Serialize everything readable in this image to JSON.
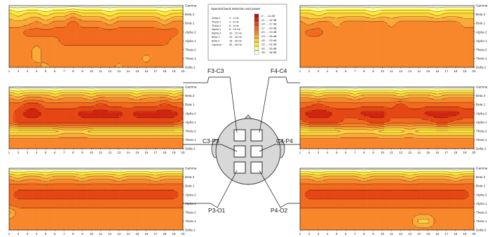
{
  "colors": {
    "scale": [
      "#b31212",
      "#cf2410",
      "#e64614",
      "#f26a1e",
      "#f7872a",
      "#fbaa3a",
      "#fdd03e",
      "#ffed38",
      "#ffff9a",
      "#ffffe8"
    ],
    "contour": "#3a1f10",
    "frame": "#000000"
  },
  "chart_data": {
    "type": "heatmap",
    "x": [
      1,
      2,
      3,
      4,
      5,
      6,
      7,
      8,
      9,
      10,
      11,
      12,
      13,
      14,
      15,
      16,
      17,
      18,
      19,
      20
    ],
    "bands": [
      "Gamma",
      "Beta 2",
      "Beta 1",
      "Alpha 2",
      "Alpha 1",
      "Theta 2",
      "Theta 1",
      "Delta 2"
    ],
    "legend": {
      "title": "Spectral band selection and power",
      "bands": [
        {
          "name": "Delta 2",
          "range": "2 - 4 Hz"
        },
        {
          "name": "Theta 1",
          "range": "4 - 6 Hz"
        },
        {
          "name": "Theta 2",
          "range": "6 - 8 Hz"
        },
        {
          "name": "Alpha 1",
          "range": "8 - 10 Hz"
        },
        {
          "name": "Alpha 2",
          "range": "10 - 12 Hz"
        },
        {
          "name": "Beta 1",
          "range": "12 - 16 Hz"
        },
        {
          "name": "Beta 2",
          "range": "16 - 20 Hz"
        },
        {
          "name": "Gamma",
          "range": "30 - 40 Hz"
        }
      ],
      "scale_labels": [
        "-9 ... -11 dB",
        "-11 ... -14 dB",
        "-14 ... -17 dB",
        "-17 ... -20 dB",
        "-20 ... -23 dB",
        "-23 ... -26 dB",
        "-26 ... -29 dB",
        "-29 ... -32 dB",
        "-32 ... -35 dB",
        "-35 ... -38 dB"
      ]
    },
    "panels": [
      {
        "name": "F3-C3",
        "levels": [
          [
            9,
            9,
            9,
            9,
            9,
            9,
            9,
            9,
            9,
            9,
            9,
            9,
            9,
            9,
            9,
            9,
            9,
            9,
            9,
            9
          ],
          [
            6,
            7,
            6,
            6,
            7,
            6,
            6,
            5,
            6,
            6,
            6,
            7,
            6,
            6,
            6,
            6,
            6,
            7,
            6,
            6
          ],
          [
            5,
            5,
            5,
            4,
            5,
            4,
            4,
            3,
            4,
            4,
            4,
            5,
            4,
            4,
            4,
            4,
            4,
            5,
            4,
            4
          ],
          [
            4,
            4,
            3,
            3,
            3,
            3,
            3,
            3,
            3,
            3,
            3,
            3,
            3,
            3,
            3,
            3,
            3,
            3,
            3,
            4
          ],
          [
            4,
            4,
            4,
            4,
            4,
            4,
            3,
            3,
            3,
            3,
            3,
            3,
            3,
            3,
            3,
            3,
            3,
            3,
            4,
            4
          ],
          [
            4,
            4,
            4,
            5,
            4,
            4,
            4,
            4,
            4,
            4,
            4,
            4,
            4,
            4,
            4,
            4,
            4,
            4,
            4,
            4
          ],
          [
            4,
            4,
            4,
            5,
            4,
            4,
            4,
            4,
            4,
            4,
            4,
            4,
            4,
            4,
            4,
            5,
            4,
            4,
            4,
            4
          ],
          [
            4,
            4,
            4,
            4,
            5,
            4,
            4,
            4,
            4,
            4,
            4,
            4,
            5,
            4,
            4,
            4,
            4,
            4,
            4,
            4
          ]
        ]
      },
      {
        "name": "F4-C4",
        "levels": [
          [
            9,
            9,
            9,
            9,
            9,
            9,
            9,
            9,
            9,
            9,
            9,
            9,
            9,
            9,
            9,
            9,
            9,
            9,
            9,
            9
          ],
          [
            6,
            6,
            7,
            6,
            6,
            6,
            6,
            6,
            7,
            6,
            6,
            6,
            6,
            6,
            6,
            7,
            6,
            6,
            6,
            6
          ],
          [
            4,
            5,
            4,
            4,
            5,
            4,
            4,
            4,
            4,
            4,
            5,
            4,
            4,
            4,
            4,
            4,
            4,
            4,
            5,
            5
          ],
          [
            4,
            3,
            3,
            4,
            4,
            4,
            4,
            4,
            4,
            4,
            4,
            4,
            4,
            4,
            4,
            4,
            4,
            4,
            4,
            4
          ],
          [
            4,
            4,
            4,
            4,
            4,
            4,
            4,
            4,
            4,
            4,
            4,
            4,
            4,
            4,
            4,
            4,
            4,
            4,
            4,
            4
          ],
          [
            4,
            4,
            4,
            4,
            4,
            4,
            4,
            4,
            4,
            4,
            4,
            4,
            4,
            4,
            4,
            4,
            4,
            4,
            4,
            4
          ],
          [
            4,
            4,
            4,
            4,
            4,
            4,
            4,
            4,
            4,
            4,
            4,
            4,
            4,
            4,
            4,
            4,
            4,
            4,
            4,
            4
          ],
          [
            4,
            4,
            4,
            4,
            4,
            4,
            4,
            4,
            4,
            4,
            4,
            4,
            4,
            4,
            4,
            4,
            4,
            4,
            4,
            4
          ]
        ]
      },
      {
        "name": "C3-P3",
        "levels": [
          [
            9,
            9,
            9,
            9,
            9,
            9,
            9,
            9,
            9,
            9,
            9,
            9,
            9,
            9,
            9,
            9,
            9,
            9,
            9,
            9
          ],
          [
            5,
            6,
            5,
            5,
            5,
            6,
            5,
            5,
            5,
            6,
            5,
            5,
            5,
            5,
            6,
            5,
            5,
            5,
            6,
            5
          ],
          [
            3,
            3,
            2,
            2,
            3,
            3,
            3,
            3,
            3,
            3,
            2,
            3,
            3,
            3,
            3,
            3,
            3,
            2,
            3,
            3
          ],
          [
            3,
            2,
            1,
            1,
            2,
            2,
            2,
            2,
            1,
            1,
            1,
            1,
            1,
            2,
            1,
            1,
            1,
            1,
            1,
            2
          ],
          [
            3,
            2,
            2,
            2,
            2,
            2,
            2,
            2,
            2,
            2,
            2,
            2,
            2,
            2,
            2,
            2,
            2,
            2,
            2,
            3
          ],
          [
            7,
            7,
            7,
            7,
            7,
            7,
            6,
            6,
            6,
            7,
            7,
            7,
            7,
            7,
            7,
            7,
            7,
            7,
            7,
            7
          ],
          [
            4,
            4,
            4,
            4,
            4,
            4,
            4,
            4,
            4,
            4,
            4,
            4,
            4,
            4,
            4,
            4,
            4,
            4,
            4,
            4
          ],
          [
            4,
            4,
            4,
            4,
            4,
            4,
            4,
            4,
            4,
            4,
            4,
            4,
            4,
            4,
            4,
            4,
            4,
            4,
            4,
            4
          ]
        ]
      },
      {
        "name": "C4-P4",
        "levels": [
          [
            9,
            9,
            9,
            9,
            9,
            9,
            9,
            9,
            9,
            9,
            9,
            9,
            9,
            9,
            9,
            9,
            9,
            9,
            9,
            9
          ],
          [
            5,
            5,
            6,
            5,
            5,
            5,
            6,
            5,
            5,
            5,
            5,
            6,
            5,
            5,
            5,
            6,
            5,
            5,
            5,
            5
          ],
          [
            3,
            3,
            2,
            3,
            3,
            3,
            3,
            3,
            3,
            3,
            3,
            2,
            3,
            3,
            3,
            3,
            3,
            3,
            3,
            3
          ],
          [
            2,
            1,
            1,
            1,
            2,
            2,
            2,
            1,
            1,
            1,
            2,
            2,
            2,
            2,
            1,
            1,
            1,
            1,
            2,
            2
          ],
          [
            3,
            2,
            2,
            2,
            2,
            3,
            3,
            3,
            2,
            2,
            3,
            3,
            3,
            3,
            3,
            2,
            2,
            3,
            3,
            3
          ],
          [
            7,
            7,
            7,
            7,
            7,
            6,
            6,
            6,
            6,
            7,
            7,
            7,
            6,
            7,
            7,
            7,
            7,
            7,
            7,
            7
          ],
          [
            4,
            4,
            4,
            4,
            4,
            4,
            4,
            4,
            4,
            4,
            4,
            4,
            4,
            4,
            4,
            4,
            4,
            4,
            4,
            4
          ],
          [
            4,
            4,
            4,
            4,
            4,
            4,
            4,
            4,
            4,
            4,
            4,
            4,
            4,
            4,
            4,
            4,
            4,
            4,
            4,
            4
          ]
        ]
      },
      {
        "name": "P3-O1",
        "levels": [
          [
            9,
            9,
            9,
            9,
            9,
            9,
            9,
            9,
            9,
            9,
            9,
            9,
            9,
            9,
            9,
            9,
            9,
            9,
            9,
            9
          ],
          [
            5,
            6,
            5,
            5,
            6,
            5,
            5,
            5,
            6,
            5,
            5,
            5,
            6,
            5,
            5,
            5,
            6,
            5,
            5,
            5
          ],
          [
            3,
            3,
            3,
            3,
            3,
            3,
            3,
            3,
            3,
            3,
            3,
            3,
            3,
            3,
            3,
            3,
            3,
            3,
            3,
            3
          ],
          [
            3,
            2,
            2,
            2,
            2,
            2,
            2,
            2,
            2,
            2,
            2,
            2,
            2,
            2,
            2,
            2,
            2,
            2,
            2,
            3
          ],
          [
            3,
            3,
            3,
            3,
            3,
            3,
            3,
            3,
            3,
            3,
            3,
            3,
            3,
            3,
            3,
            3,
            3,
            3,
            3,
            3
          ],
          [
            6,
            4,
            4,
            4,
            4,
            4,
            4,
            4,
            4,
            4,
            4,
            4,
            4,
            4,
            4,
            4,
            4,
            4,
            4,
            4
          ],
          [
            4,
            4,
            4,
            4,
            4,
            4,
            4,
            4,
            4,
            4,
            4,
            4,
            4,
            4,
            4,
            4,
            4,
            4,
            4,
            4
          ],
          [
            4,
            4,
            4,
            4,
            4,
            4,
            4,
            4,
            4,
            4,
            4,
            4,
            4,
            4,
            4,
            4,
            4,
            4,
            4,
            4
          ]
        ]
      },
      {
        "name": "P4-O2",
        "levels": [
          [
            9,
            9,
            9,
            9,
            9,
            9,
            9,
            9,
            9,
            9,
            9,
            9,
            9,
            9,
            9,
            9,
            9,
            9,
            9,
            9
          ],
          [
            5,
            5,
            6,
            5,
            5,
            5,
            5,
            6,
            5,
            5,
            5,
            5,
            6,
            5,
            5,
            5,
            5,
            6,
            5,
            5
          ],
          [
            3,
            3,
            3,
            3,
            3,
            3,
            3,
            3,
            3,
            3,
            3,
            3,
            3,
            3,
            3,
            3,
            3,
            3,
            3,
            3
          ],
          [
            3,
            2,
            2,
            2,
            2,
            2,
            2,
            2,
            2,
            2,
            2,
            2,
            2,
            2,
            2,
            2,
            2,
            2,
            2,
            3
          ],
          [
            3,
            3,
            3,
            3,
            3,
            3,
            3,
            3,
            3,
            3,
            3,
            3,
            3,
            3,
            3,
            3,
            3,
            3,
            3,
            3
          ],
          [
            4,
            4,
            4,
            4,
            4,
            4,
            4,
            4,
            4,
            4,
            4,
            4,
            4,
            4,
            4,
            4,
            4,
            4,
            4,
            4
          ],
          [
            4,
            4,
            4,
            4,
            4,
            4,
            4,
            4,
            4,
            4,
            4,
            4,
            4,
            6,
            6,
            4,
            4,
            4,
            4,
            4
          ],
          [
            4,
            4,
            4,
            4,
            4,
            4,
            4,
            4,
            4,
            4,
            4,
            4,
            4,
            4,
            4,
            4,
            4,
            4,
            4,
            4
          ]
        ]
      }
    ]
  }
}
